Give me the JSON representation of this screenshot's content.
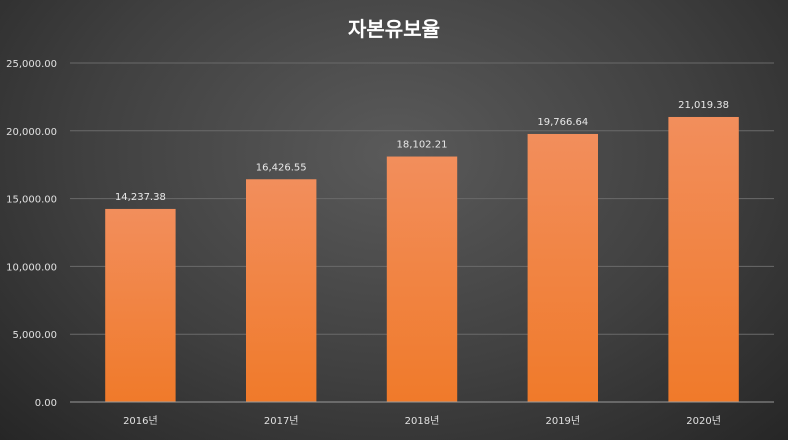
{
  "chart_data": {
    "type": "bar",
    "title": "자본유보율",
    "categories": [
      "2016년",
      "2017년",
      "2018년",
      "2019년",
      "2020년"
    ],
    "values": [
      14237.38,
      16426.55,
      18102.21,
      19766.64,
      21019.38
    ],
    "value_labels": [
      "14,237.38",
      "16,426.55",
      "18,102.21",
      "19,766.64",
      "21,019.38"
    ],
    "yticks": [
      0,
      5000,
      10000,
      15000,
      20000,
      25000
    ],
    "ytick_labels": [
      "0.00",
      "5,000.00",
      "10,000.00",
      "15,000.00",
      "20,000.00",
      "25,000.00"
    ],
    "ylim": [
      0,
      25000
    ],
    "xlabel": "",
    "ylabel": "",
    "grid": true,
    "bar_color": "#F07A2A",
    "bar_color_top": "#F28E5C",
    "background_color": "#404040"
  }
}
